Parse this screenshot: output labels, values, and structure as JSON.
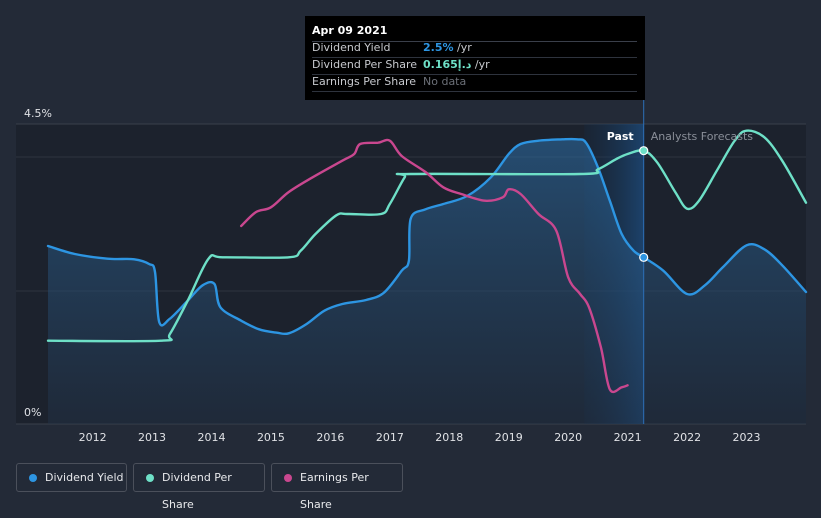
{
  "tooltip": {
    "date": "Apr 09 2021",
    "rows": [
      {
        "label": "Dividend Yield",
        "value": "2.5%",
        "unit": " /yr",
        "color": "#2d95e2"
      },
      {
        "label": "Dividend Per Share",
        "value": "0.165د.إ",
        "unit": " /yr",
        "color": "#6ee0c7"
      },
      {
        "label": "Earnings Per Share",
        "value": "No data",
        "unit": "",
        "color": "#6b6f77"
      }
    ]
  },
  "legend": [
    {
      "label": "Dividend Yield",
      "color": "#2d95e2"
    },
    {
      "label": "Dividend Per Share",
      "color": "#6ee0c7"
    },
    {
      "label": "Earnings Per Share",
      "color": "#c9478f"
    }
  ],
  "chart_data": {
    "type": "line",
    "y_axis_labels": {
      "top": "4.5%",
      "bottom": "0%"
    },
    "ylim": [
      0,
      4.5
    ],
    "xlim": [
      2011.25,
      2024.0
    ],
    "x_ticks": [
      2012,
      2013,
      2014,
      2015,
      2016,
      2017,
      2018,
      2019,
      2020,
      2021,
      2022,
      2023
    ],
    "past_label": "Past",
    "forecast_label": "Analysts Forecasts",
    "current_x": 2021.27,
    "series": [
      {
        "name": "Dividend Yield",
        "color": "#2d95e2",
        "area": true,
        "points": [
          [
            2011.25,
            2.67
          ],
          [
            2011.7,
            2.55
          ],
          [
            2012.25,
            2.48
          ],
          [
            2012.7,
            2.47
          ],
          [
            2012.95,
            2.4
          ],
          [
            2013.05,
            2.28
          ],
          [
            2013.12,
            1.53
          ],
          [
            2013.3,
            1.58
          ],
          [
            2013.6,
            1.85
          ],
          [
            2013.85,
            2.08
          ],
          [
            2014.05,
            2.1
          ],
          [
            2014.15,
            1.75
          ],
          [
            2014.5,
            1.55
          ],
          [
            2014.8,
            1.42
          ],
          [
            2015.1,
            1.37
          ],
          [
            2015.3,
            1.36
          ],
          [
            2015.6,
            1.5
          ],
          [
            2015.9,
            1.7
          ],
          [
            2016.2,
            1.8
          ],
          [
            2016.6,
            1.86
          ],
          [
            2016.9,
            1.97
          ],
          [
            2017.2,
            2.3
          ],
          [
            2017.32,
            2.45
          ],
          [
            2017.35,
            3.08
          ],
          [
            2017.6,
            3.22
          ],
          [
            2017.9,
            3.3
          ],
          [
            2018.3,
            3.42
          ],
          [
            2018.7,
            3.7
          ],
          [
            2019.0,
            4.05
          ],
          [
            2019.2,
            4.2
          ],
          [
            2019.5,
            4.25
          ],
          [
            2019.9,
            4.27
          ],
          [
            2020.15,
            4.27
          ],
          [
            2020.3,
            4.22
          ],
          [
            2020.5,
            3.85
          ],
          [
            2020.7,
            3.35
          ],
          [
            2020.9,
            2.85
          ],
          [
            2021.1,
            2.6
          ],
          [
            2021.27,
            2.5
          ],
          [
            2021.6,
            2.3
          ],
          [
            2022.0,
            1.95
          ],
          [
            2022.3,
            2.08
          ],
          [
            2022.6,
            2.35
          ],
          [
            2023.0,
            2.68
          ],
          [
            2023.3,
            2.62
          ],
          [
            2023.6,
            2.38
          ],
          [
            2024.0,
            1.98
          ]
        ]
      },
      {
        "name": "Dividend Per Share",
        "color": "#6ee0c7",
        "area": false,
        "points": [
          [
            2011.25,
            1.25
          ],
          [
            2013.15,
            1.25
          ],
          [
            2013.3,
            1.35
          ],
          [
            2013.6,
            1.85
          ],
          [
            2013.95,
            2.48
          ],
          [
            2014.2,
            2.5
          ],
          [
            2015.3,
            2.5
          ],
          [
            2015.5,
            2.6
          ],
          [
            2015.75,
            2.85
          ],
          [
            2016.1,
            3.13
          ],
          [
            2016.3,
            3.15
          ],
          [
            2016.85,
            3.15
          ],
          [
            2017.0,
            3.3
          ],
          [
            2017.25,
            3.7
          ],
          [
            2017.35,
            3.75
          ],
          [
            2020.2,
            3.75
          ],
          [
            2020.5,
            3.82
          ],
          [
            2020.8,
            3.97
          ],
          [
            2021.0,
            4.05
          ],
          [
            2021.27,
            4.1
          ],
          [
            2021.5,
            3.92
          ],
          [
            2021.8,
            3.48
          ],
          [
            2022.0,
            3.23
          ],
          [
            2022.2,
            3.35
          ],
          [
            2022.5,
            3.8
          ],
          [
            2022.8,
            4.25
          ],
          [
            2023.0,
            4.4
          ],
          [
            2023.3,
            4.3
          ],
          [
            2023.6,
            3.95
          ],
          [
            2024.0,
            3.32
          ]
        ]
      },
      {
        "name": "Earnings Per Share",
        "color": "#c9478f",
        "area": false,
        "points": [
          [
            2014.5,
            2.97
          ],
          [
            2014.75,
            3.18
          ],
          [
            2015.0,
            3.25
          ],
          [
            2015.3,
            3.48
          ],
          [
            2015.7,
            3.7
          ],
          [
            2016.2,
            3.95
          ],
          [
            2016.4,
            4.05
          ],
          [
            2016.5,
            4.2
          ],
          [
            2016.8,
            4.22
          ],
          [
            2017.0,
            4.25
          ],
          [
            2017.2,
            4.02
          ],
          [
            2017.6,
            3.78
          ],
          [
            2017.9,
            3.55
          ],
          [
            2018.2,
            3.45
          ],
          [
            2018.6,
            3.35
          ],
          [
            2018.9,
            3.4
          ],
          [
            2019.0,
            3.52
          ],
          [
            2019.2,
            3.45
          ],
          [
            2019.5,
            3.15
          ],
          [
            2019.8,
            2.9
          ],
          [
            2020.0,
            2.2
          ],
          [
            2020.2,
            1.95
          ],
          [
            2020.35,
            1.75
          ],
          [
            2020.55,
            1.15
          ],
          [
            2020.7,
            0.52
          ],
          [
            2020.9,
            0.55
          ],
          [
            2021.0,
            0.58
          ]
        ]
      }
    ]
  }
}
